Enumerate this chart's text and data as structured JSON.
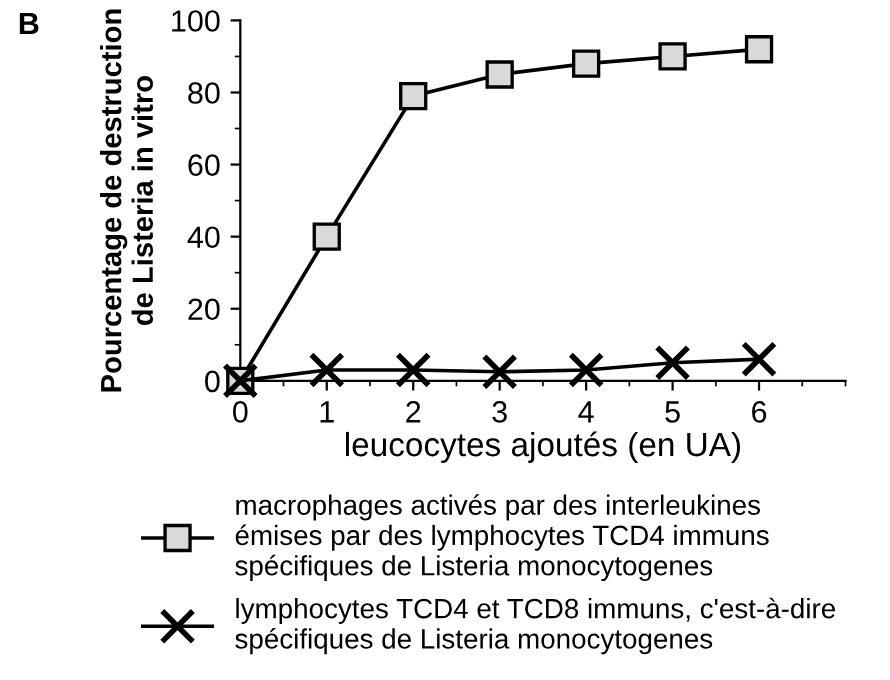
{
  "chart_data": {
    "type": "line",
    "ylabel": "Pourcentage de destruction\nde Listeria in vitro",
    "xlabel": "leucocytes ajoutés (en UA)",
    "annotations": [
      "B"
    ],
    "x": [
      0,
      1,
      2,
      3,
      4,
      5,
      6
    ],
    "xlim": [
      0,
      7
    ],
    "xticks": [
      0,
      1,
      2,
      3,
      4,
      5,
      6
    ],
    "ylim": [
      0,
      100
    ],
    "yticks": [
      0,
      20,
      40,
      60,
      80,
      100
    ],
    "grid": false,
    "legend": "bottom",
    "series": [
      {
        "name": "macrophages activés par des interleukines\némises par des lymphocytes TCD4 immuns\nspécifiques de Listeria monocytogenes",
        "color": "#000000",
        "marker": "square",
        "values": [
          0,
          40,
          79,
          85,
          88,
          90,
          92
        ]
      },
      {
        "name": "lymphocytes TCD4 et TCD8 immuns, c'est-à-dire\nspécifiques de Listeria monocytogenes",
        "color": "#000000",
        "marker": "cross",
        "values": [
          0,
          3,
          3,
          2.5,
          3,
          5,
          6
        ]
      }
    ]
  }
}
